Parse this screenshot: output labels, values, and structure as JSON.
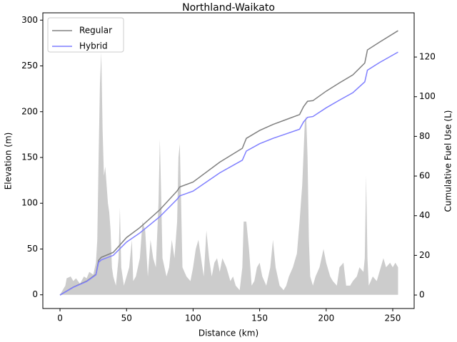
{
  "chart_data": {
    "type": "line",
    "title": "Northland-Waikato",
    "x_label": "Distance (km)",
    "y_label": "Elevation (m)",
    "y2_label": "Cumulative Fuel Use (L)",
    "xlim": [
      -12.9,
      266.1
    ],
    "xticks": [
      0,
      50,
      100,
      150,
      200,
      250
    ],
    "ylim": [
      -15,
      308
    ],
    "yticks": [
      0,
      50,
      100,
      150,
      200,
      250,
      300
    ],
    "y2lim": [
      -6.8,
      142.3
    ],
    "y2ticks": [
      0,
      20,
      40,
      60,
      80,
      100,
      120
    ],
    "legend": "upper left",
    "area": {
      "color": "#cccccc",
      "x": [
        0,
        2,
        4,
        5,
        8,
        10,
        12,
        15,
        18,
        20,
        22,
        25,
        27,
        28,
        29,
        30,
        31,
        32,
        33,
        34,
        35,
        36,
        37,
        38,
        39,
        40,
        42,
        44,
        45,
        46,
        48,
        50,
        52,
        54,
        55,
        57,
        60,
        62,
        64,
        66,
        68,
        70,
        72,
        74,
        75,
        76,
        77,
        80,
        82,
        84,
        86,
        88,
        89,
        90,
        91,
        92,
        95,
        98,
        100,
        102,
        104,
        106,
        108,
        110,
        112,
        114,
        116,
        118,
        120,
        122,
        125,
        128,
        130,
        132,
        135,
        137,
        138,
        140,
        142,
        144,
        146,
        148,
        150,
        152,
        155,
        158,
        160,
        162,
        165,
        168,
        170,
        172,
        175,
        178,
        180,
        182,
        184,
        185,
        186,
        187,
        188,
        190,
        192,
        195,
        198,
        200,
        203,
        205,
        208,
        210,
        213,
        215,
        218,
        220,
        223,
        225,
        228,
        229,
        230,
        231,
        232,
        235,
        238,
        240,
        243,
        245,
        248,
        250,
        252,
        254
      ],
      "values": [
        0,
        5,
        10,
        18,
        20,
        15,
        18,
        12,
        20,
        18,
        25,
        22,
        35,
        60,
        150,
        230,
        265,
        180,
        130,
        140,
        120,
        100,
        90,
        70,
        30,
        20,
        10,
        40,
        95,
        30,
        10,
        20,
        30,
        60,
        15,
        20,
        40,
        80,
        70,
        20,
        60,
        40,
        30,
        100,
        170,
        110,
        40,
        20,
        30,
        60,
        40,
        80,
        150,
        165,
        100,
        30,
        20,
        15,
        30,
        50,
        60,
        40,
        20,
        70,
        40,
        20,
        35,
        40,
        25,
        40,
        30,
        15,
        20,
        10,
        5,
        30,
        80,
        80,
        50,
        10,
        15,
        30,
        35,
        20,
        10,
        30,
        60,
        30,
        10,
        5,
        10,
        20,
        30,
        45,
        80,
        120,
        190,
        195,
        150,
        60,
        20,
        10,
        20,
        30,
        50,
        35,
        20,
        15,
        10,
        30,
        35,
        10,
        10,
        15,
        20,
        30,
        25,
        40,
        130,
        40,
        10,
        20,
        15,
        25,
        40,
        30,
        35,
        30,
        35,
        30
      ]
    },
    "x": [
      0,
      10,
      20,
      27,
      29,
      31,
      40,
      50,
      60,
      75,
      88,
      90,
      100,
      120,
      137,
      140,
      150,
      160,
      170,
      180,
      183,
      186,
      190,
      200,
      210,
      220,
      229,
      231,
      240,
      254
    ],
    "series": [
      {
        "name": "Regular",
        "color": "#808080",
        "axis": "y2",
        "values": [
          0,
          4,
          7,
          10.4,
          17.5,
          19,
          21.5,
          29,
          34,
          43,
          52.5,
          54.5,
          57,
          67,
          74,
          79,
          83,
          86,
          88.5,
          91,
          95,
          97.7,
          98,
          102.8,
          107,
          111,
          117,
          123.6,
          127.5,
          133.3
        ]
      },
      {
        "name": "Hybrid",
        "color": "#7f7fff",
        "axis": "y2",
        "values": [
          0,
          3.9,
          6.8,
          10.2,
          16.5,
          17.7,
          20,
          26.7,
          31.3,
          39.5,
          48.3,
          50,
          52.4,
          61.6,
          68,
          72.6,
          76.3,
          79,
          81.3,
          83.6,
          87.3,
          89.6,
          90,
          94.4,
          98.3,
          102,
          107.5,
          113.4,
          117.2,
          122.5
        ]
      }
    ]
  }
}
